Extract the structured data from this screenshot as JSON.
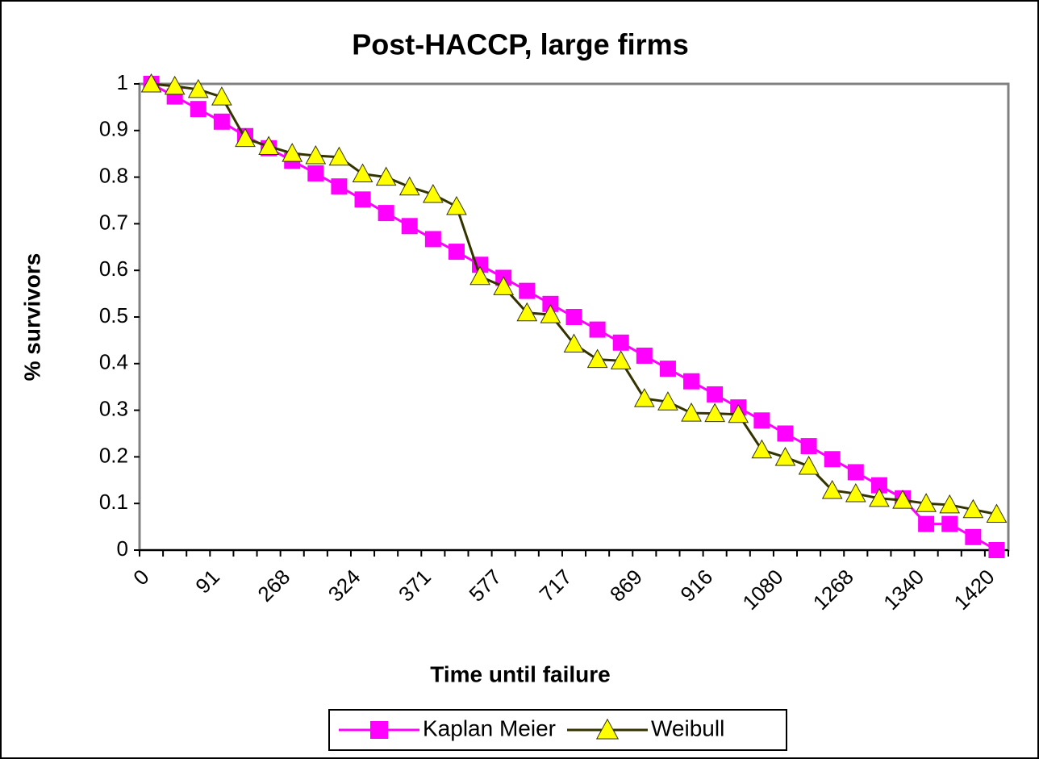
{
  "chart_data": {
    "type": "line",
    "title": "Post-HACCP, large firms",
    "x_label": "Time until failure",
    "y_label": "% survivors",
    "categories": [
      "0",
      null,
      null,
      "91",
      null,
      null,
      "268",
      null,
      null,
      "324",
      null,
      null,
      "371",
      null,
      null,
      "577",
      null,
      null,
      "717",
      null,
      null,
      "869",
      null,
      null,
      "916",
      null,
      null,
      "1080",
      null,
      null,
      "1268",
      null,
      null,
      "1340",
      null,
      null,
      "1420"
    ],
    "series": [
      {
        "name": "Kaplan Meier",
        "color": "#ff00ff",
        "marker": "square",
        "values": [
          1,
          0.973,
          0.946,
          0.919,
          0.888,
          0.862,
          0.835,
          0.808,
          0.78,
          0.752,
          0.723,
          0.695,
          0.667,
          0.64,
          0.612,
          0.584,
          0.556,
          0.528,
          0.5,
          0.473,
          0.445,
          0.417,
          0.389,
          0.362,
          0.334,
          0.306,
          0.278,
          0.25,
          0.223,
          0.195,
          0.167,
          0.139,
          0.111,
          0.056,
          0.056,
          0.028,
          0
        ]
      },
      {
        "name": "Weibull",
        "color": "#333300",
        "marker_color": "#ffff00",
        "marker": "triangle",
        "values": [
          1,
          0.995,
          0.988,
          0.972,
          0.883,
          0.866,
          0.851,
          0.846,
          0.843,
          0.807,
          0.8,
          0.779,
          0.763,
          0.737,
          0.587,
          0.565,
          0.509,
          0.505,
          0.442,
          0.409,
          0.406,
          0.325,
          0.318,
          0.294,
          0.293,
          0.291,
          0.215,
          0.199,
          0.18,
          0.128,
          0.121,
          0.111,
          0.107,
          0.1,
          0.097,
          0.087,
          0.077
        ]
      }
    ],
    "ylim": [
      0,
      1
    ],
    "yticks": [
      0,
      0.1,
      0.2,
      0.3,
      0.4,
      0.5,
      0.6,
      0.7,
      0.8,
      0.9,
      1
    ],
    "grid": false,
    "legend": "bottom"
  }
}
